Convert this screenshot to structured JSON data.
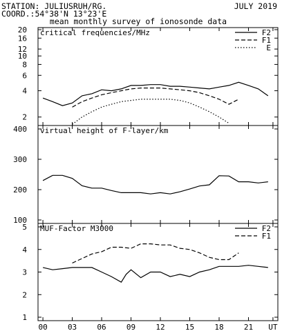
{
  "header": {
    "station": "STATION: JULIUSRUH/RG.",
    "date": "JULY 2019",
    "coord": "COORD.:54°38'N 13°23'E",
    "subtitle": "mean monthly survey of ionosonde data"
  },
  "chart_data": [
    {
      "type": "line",
      "title": "critical frequencies/MHz",
      "y_scale": "log",
      "ylim": [
        1.6,
        20
      ],
      "yticks": [
        2,
        4,
        6,
        8,
        10,
        12,
        16,
        20
      ],
      "xlim": [
        -0.5,
        24
      ],
      "xticks": [
        "00",
        "03",
        "06",
        "09",
        "12",
        "15",
        "18",
        "21",
        "UT"
      ],
      "xtick_hours": [
        0,
        3,
        6,
        9,
        12,
        15,
        18,
        21,
        23.5
      ],
      "legend_position": "top-right",
      "series": [
        {
          "name": "F2",
          "style": "solid",
          "color": "#000000",
          "x": [
            0,
            1,
            2,
            3,
            4,
            5,
            6,
            7,
            8,
            9,
            10,
            11,
            12,
            13,
            14,
            15,
            16,
            17,
            18,
            19,
            20,
            21,
            22,
            23
          ],
          "y": [
            3.3,
            3.0,
            2.7,
            2.9,
            3.5,
            3.7,
            4.1,
            4.0,
            4.2,
            4.6,
            4.6,
            4.7,
            4.7,
            4.5,
            4.5,
            4.4,
            4.3,
            4.2,
            4.4,
            4.6,
            5.0,
            4.6,
            4.2,
            3.5
          ]
        },
        {
          "name": "F1",
          "style": "dashed",
          "color": "#000000",
          "x": [
            3,
            4,
            5,
            6,
            7,
            8,
            9,
            10,
            11,
            12,
            13,
            14,
            15,
            16,
            17,
            18,
            19,
            20
          ],
          "y": [
            2.6,
            3.0,
            3.3,
            3.6,
            3.8,
            4.0,
            4.2,
            4.3,
            4.3,
            4.3,
            4.2,
            4.1,
            4.0,
            3.8,
            3.5,
            3.2,
            2.8,
            3.2
          ]
        },
        {
          "name": "E",
          "style": "dotted",
          "color": "#000000",
          "x": [
            3,
            4,
            5,
            6,
            7,
            8,
            9,
            10,
            11,
            12,
            13,
            14,
            15,
            16,
            17,
            18,
            19
          ],
          "y": [
            1.65,
            2.0,
            2.3,
            2.6,
            2.8,
            3.0,
            3.1,
            3.2,
            3.2,
            3.2,
            3.2,
            3.1,
            2.9,
            2.6,
            2.3,
            2.0,
            1.7
          ]
        }
      ]
    },
    {
      "type": "line",
      "title": "virtual height of F-layer/km",
      "y_scale": "linear",
      "ylim": [
        100,
        400
      ],
      "yticks": [
        100,
        200,
        300,
        400
      ],
      "xlim": [
        -0.5,
        24
      ],
      "xtick_hours": [
        0,
        3,
        6,
        9,
        12,
        15,
        18,
        21,
        23.5
      ],
      "series": [
        {
          "name": "",
          "style": "solid",
          "color": "#000000",
          "x": [
            0,
            1,
            2,
            3,
            4,
            5,
            6,
            7,
            8,
            9,
            10,
            11,
            12,
            13,
            14,
            15,
            16,
            17,
            18,
            19,
            20,
            21,
            22,
            23
          ],
          "y": [
            230,
            247,
            247,
            237,
            213,
            205,
            205,
            197,
            190,
            190,
            190,
            186,
            190,
            186,
            193,
            202,
            212,
            216,
            246,
            245,
            226,
            226,
            222,
            226
          ]
        }
      ]
    },
    {
      "type": "line",
      "title": "MUF-Factor M3000",
      "y_scale": "linear",
      "ylim": [
        1,
        5
      ],
      "yticks": [
        1,
        2,
        3,
        4,
        5
      ],
      "xlim": [
        -0.5,
        24
      ],
      "xtick_hours": [
        0,
        3,
        6,
        9,
        12,
        15,
        18,
        21,
        23.5
      ],
      "legend_position": "top-right",
      "series": [
        {
          "name": "F2",
          "style": "solid",
          "color": "#000000",
          "x": [
            0,
            1,
            2,
            3,
            4,
            5,
            6,
            7,
            8,
            8.5,
            9,
            10,
            11,
            12,
            13,
            14,
            15,
            16,
            17,
            18,
            19,
            20,
            21,
            22,
            23
          ],
          "y": [
            3.2,
            3.1,
            3.15,
            3.2,
            3.2,
            3.2,
            3.0,
            2.8,
            2.55,
            2.9,
            3.1,
            2.75,
            3.0,
            3.0,
            2.8,
            2.9,
            2.8,
            3.0,
            3.1,
            3.25,
            3.25,
            3.25,
            3.3,
            3.25,
            3.2
          ]
        },
        {
          "name": "F1",
          "style": "dashed",
          "color": "#000000",
          "x": [
            3,
            4,
            5,
            6,
            7,
            8,
            9,
            10,
            11,
            12,
            13,
            14,
            15,
            16,
            17,
            18,
            19,
            20
          ],
          "y": [
            3.4,
            3.6,
            3.8,
            3.9,
            4.1,
            4.1,
            4.05,
            4.25,
            4.25,
            4.2,
            4.2,
            4.05,
            4.0,
            3.85,
            3.65,
            3.55,
            3.55,
            3.85
          ]
        }
      ]
    }
  ]
}
